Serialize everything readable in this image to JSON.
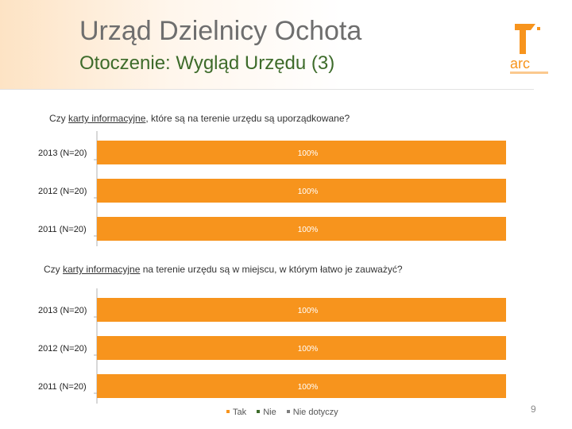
{
  "header": {
    "title": "Urząd Dzielnicy Ochota",
    "subtitle": "Otoczenie: Wygląd Urzędu (3)"
  },
  "logo": {
    "name": "arc-logo-icon",
    "text": "arc"
  },
  "colors": {
    "tak": "#f7941d",
    "nie": "#3d6b2a",
    "nie_dotyczy": "#7f7f7f"
  },
  "chart_data": [
    {
      "type": "bar",
      "orientation": "horizontal",
      "stacked": true,
      "title_parts": [
        "Czy ",
        "karty informacyjne",
        ", które są na terenie urzędu są uporządkowane?"
      ],
      "categories": [
        "2013 (N=20)",
        "2012 (N=20)",
        "2011 (N=20)"
      ],
      "series": [
        {
          "name": "Tak",
          "values": [
            100,
            100,
            100
          ]
        },
        {
          "name": "Nie",
          "values": [
            0,
            0,
            0
          ]
        },
        {
          "name": "Nie dotyczy",
          "values": [
            0,
            0,
            0
          ]
        }
      ],
      "data_labels": [
        "100%",
        "100%",
        "100%"
      ],
      "xlim": [
        0,
        100
      ]
    },
    {
      "type": "bar",
      "orientation": "horizontal",
      "stacked": true,
      "title_parts": [
        "Czy ",
        "karty informacyjne",
        " na terenie urzędu są w miejscu, w którym łatwo je zauważyć?"
      ],
      "categories": [
        "2013 (N=20)",
        "2012 (N=20)",
        "2011 (N=20)"
      ],
      "series": [
        {
          "name": "Tak",
          "values": [
            100,
            100,
            100
          ]
        },
        {
          "name": "Nie",
          "values": [
            0,
            0,
            0
          ]
        },
        {
          "name": "Nie dotyczy",
          "values": [
            0,
            0,
            0
          ]
        }
      ],
      "data_labels": [
        "100%",
        "100%",
        "100%"
      ],
      "xlim": [
        0,
        100
      ]
    }
  ],
  "legend": {
    "position": "bottom",
    "items": [
      {
        "label": "Tak",
        "color": "#f7941d"
      },
      {
        "label": "Nie",
        "color": "#3d6b2a"
      },
      {
        "label": "Nie dotyczy",
        "color": "#7f7f7f"
      }
    ]
  },
  "page_number": "9"
}
